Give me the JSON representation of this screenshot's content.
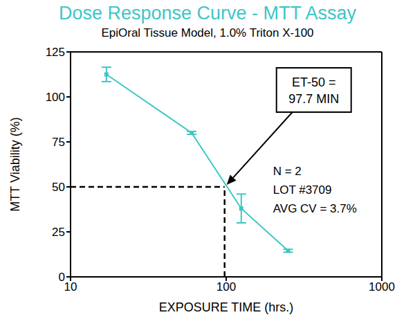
{
  "chart_data": {
    "type": "line",
    "title": "Dose Response Curve - MTT Assay",
    "subtitle": "EpiOral Tissue Model, 1.0% Triton X-100",
    "x_label": "EXPOSURE TIME (hrs.)",
    "y_label": "MTT Viability (%)",
    "x": [
      17,
      60,
      125,
      250
    ],
    "series": [
      {
        "values": [
          112.5,
          80,
          38,
          14.5
        ],
        "errors": [
          4,
          0.8,
          8,
          0.8
        ],
        "color": "#3ec6c6",
        "marker": "square",
        "line_style": "solid"
      }
    ],
    "log": "x",
    "grid": false,
    "xlim": [
      10,
      1000
    ],
    "xticks": [
      10,
      100,
      1000
    ],
    "ylim": [
      0,
      125
    ],
    "yticks": [
      0,
      25,
      50,
      75,
      100,
      125
    ],
    "et50": {
      "x": 97.7,
      "y": 50,
      "label": [
        "ET-50 =",
        "97.7 MIN"
      ]
    },
    "notes": [
      "N = 2",
      "LOT #3709",
      "AVG CV = 3.7%"
    ]
  }
}
